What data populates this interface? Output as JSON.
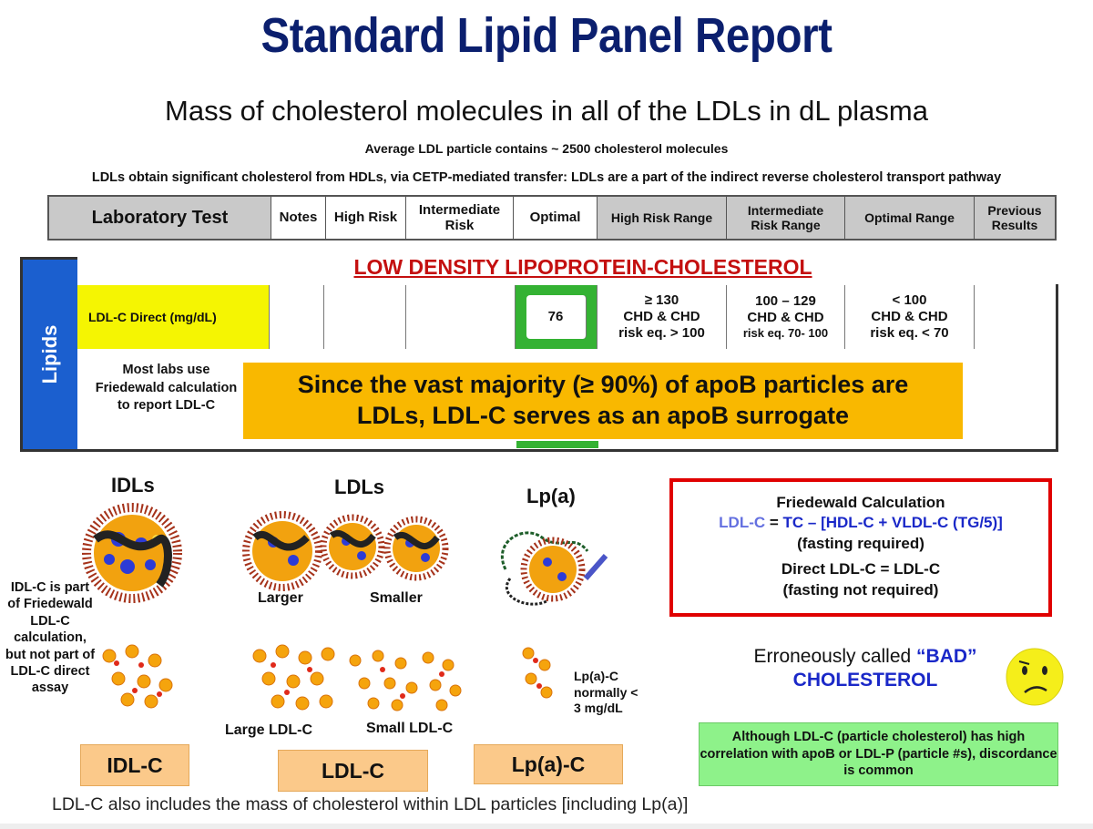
{
  "title": "Standard Lipid Panel Report",
  "subtitle": "Mass of cholesterol molecules in all of the LDLs in dL plasma",
  "note_average": "Average LDL particle contains ~ 2500 cholesterol molecules",
  "note_transfer": "LDLs obtain significant cholesterol from HDLs, via CETP-mediated transfer: LDLs are a part of the indirect reverse cholesterol transport pathway",
  "header": {
    "lab_test": "Laboratory Test",
    "notes": "Notes",
    "high_risk": "High Risk",
    "intermediate_risk_1": "Intermediate",
    "intermediate_risk_2": "Risk",
    "optimal": "Optimal",
    "high_risk_range": "High Risk Range",
    "int_range_1": "Intermediate",
    "int_range_2": "Risk Range",
    "optimal_range": "Optimal Range",
    "previous_1": "Previous",
    "previous_2": "Results"
  },
  "panel": {
    "side_label": "Lipids",
    "section_title": "LOW DENSITY LIPOPROTEIN-CHOLESTEROL",
    "test_name": "LDL-C Direct (mg/dL)",
    "result": "76",
    "high_range_1": "≥ 130",
    "high_range_2": "CHD & CHD",
    "high_range_3": "risk eq. > 100",
    "int_range_1": "100 – 129",
    "int_range_2": "CHD & CHD",
    "int_range_3": "risk eq.  70- 100",
    "opt_range_1": "< 100",
    "opt_range_2": "CHD & CHD",
    "opt_range_3": "risk eq.  < 70",
    "labs_note": "Most labs use Friedewald calculation to report LDL-C",
    "callout_1": "Since the vast majority (≥ 90%) of apoB particles are",
    "callout_2": "LDLs, LDL-C serves as an apoB surrogate"
  },
  "particles": {
    "idls": "IDLs",
    "ldls": "LDLs",
    "lpa": "Lp(a)",
    "larger": "Larger",
    "smaller": "Smaller",
    "idlc_note": "IDL-C is part of Friedewald LDL-C calculation, but not part of LDL-C direct assay",
    "large_ldlc": "Large LDL-C",
    "small_ldlc": "Small LDL-C",
    "lpa_note": "Lp(a)-C normally < 3 mg/dL",
    "tag_idlc": "IDL-C",
    "tag_ldlc": "LDL-C",
    "tag_lpac": "Lp(a)-C"
  },
  "friedewald": {
    "heading": "Friedewald Calculation",
    "lhs": "LDL-C",
    "eq": " = ",
    "rhs": "TC – [HDL-C + VLDL-C (TG/5)]",
    "fasting_req": "(fasting required)",
    "direct": "Direct LDL-C = LDL-C",
    "fasting_not": "(fasting not required)"
  },
  "bad": {
    "prefix": "Erroneously called ",
    "quoted": "“BAD”",
    "word": "CHOLESTEROL"
  },
  "discordance": "Although LDL-C (particle cholesterol) has high correlation with apoB or LDL-P (particle #s), discordance is common",
  "footer": "LDL-C also includes the mass of cholesterol within LDL particles [including Lp(a)]",
  "colors": {
    "title_navy": "#0b1f6e",
    "lipids_blue": "#1b5fcf",
    "section_red": "#c40f0f",
    "optimal_green": "#34b233",
    "callout_orange": "#f9b800",
    "test_yellow": "#f5f502",
    "formula_blue": "#1a28c8",
    "box_red": "#e00000",
    "discordance_green": "#8ef28a",
    "tag_peach": "#fbc98a"
  }
}
